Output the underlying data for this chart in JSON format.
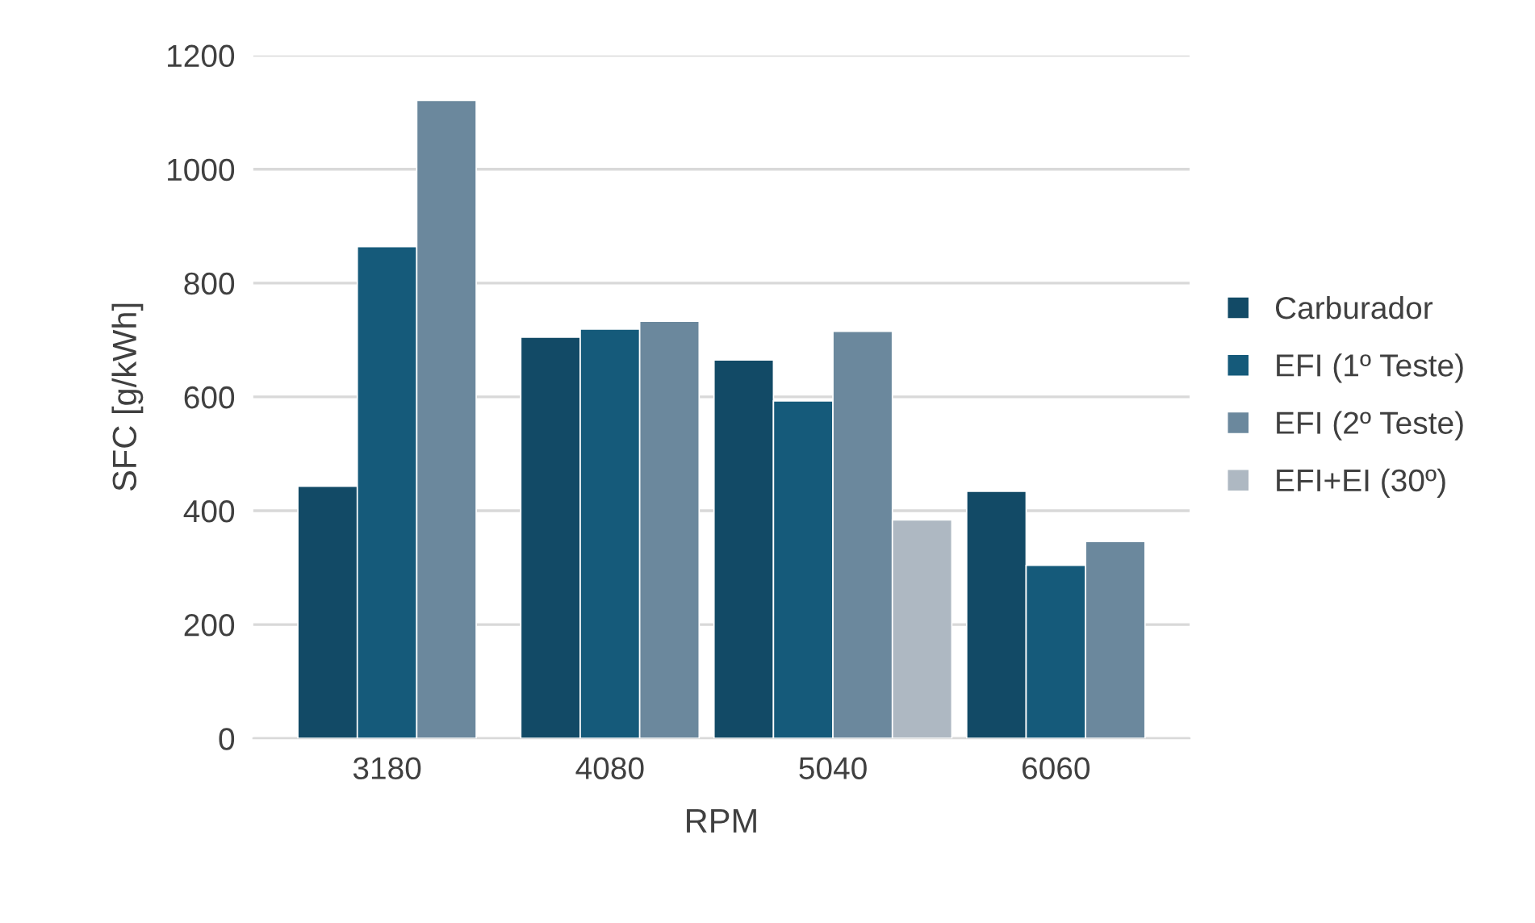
{
  "chart_data": {
    "type": "bar",
    "xlabel": "RPM",
    "ylabel": "SFC [g/kWh]",
    "categories": [
      "3180",
      "4080",
      "5040",
      "6060"
    ],
    "series": [
      {
        "name": "Carburador",
        "color": "#124a66",
        "values": [
          443,
          705,
          665,
          434
        ]
      },
      {
        "name": "EFI (1º Teste)",
        "color": "#155a7a",
        "values": [
          864,
          719,
          593,
          304
        ]
      },
      {
        "name": "EFI (2º Teste)",
        "color": "#6b889d",
        "values": [
          1121,
          733,
          715,
          346
        ]
      },
      {
        "name": "EFI+EI (30º)",
        "color": "#aeb8c2",
        "values": [
          null,
          null,
          384,
          null
        ]
      }
    ],
    "ylim": [
      0,
      1200
    ],
    "yticks": [
      0,
      200,
      400,
      600,
      800,
      1000,
      1200
    ],
    "grid": "y",
    "legend": "right"
  }
}
